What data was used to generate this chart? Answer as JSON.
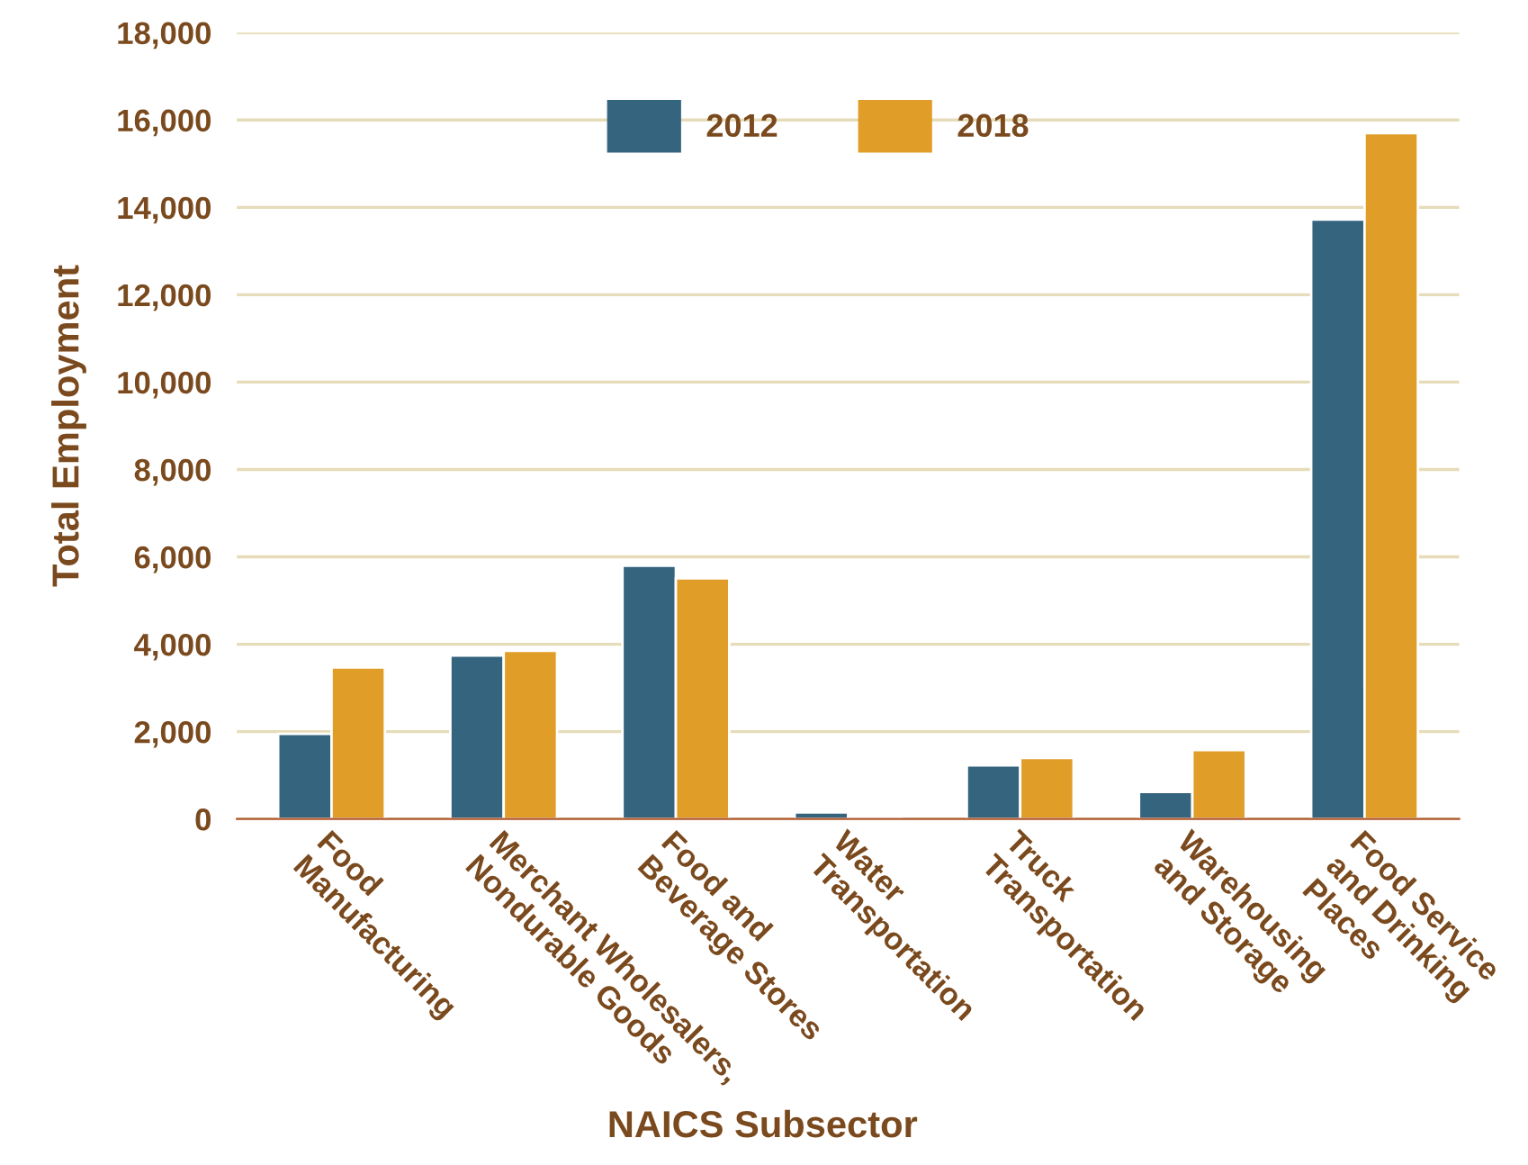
{
  "chart_data": {
    "type": "bar",
    "xlabel": "NAICS Subsector",
    "ylabel": "Total Employment",
    "categories": [
      "Food\nManufacturing",
      "Merchant Wholesalers,\nNondurable Goods",
      "Food and\nBeverage Stores",
      "Water\nTransportation",
      "Truck\nTransportation",
      "Warehousing\nand Storage",
      "Food Service\nand Drinking\nPlaces"
    ],
    "series": [
      {
        "name": "2012",
        "color": "#35647f",
        "values": [
          1950,
          3740,
          5800,
          150,
          1230,
          620,
          13720
        ]
      },
      {
        "name": "2018",
        "color": "#e09e28",
        "values": [
          3470,
          3850,
          5510,
          50,
          1400,
          1580,
          15700
        ]
      }
    ],
    "ylim": [
      0,
      18000
    ],
    "yticks": [
      {
        "value": 0,
        "label": "0"
      },
      {
        "value": 2000,
        "label": "2,000"
      },
      {
        "value": 4000,
        "label": "4,000"
      },
      {
        "value": 6000,
        "label": "6,000"
      },
      {
        "value": 8000,
        "label": "8,000"
      },
      {
        "value": 10000,
        "label": "10,000"
      },
      {
        "value": 12000,
        "label": "12,000"
      },
      {
        "value": 14000,
        "label": "14,000"
      },
      {
        "value": 16000,
        "label": "16,000"
      },
      {
        "value": 18000,
        "label": "18,000"
      }
    ],
    "grid": "y",
    "legend": "top left"
  }
}
